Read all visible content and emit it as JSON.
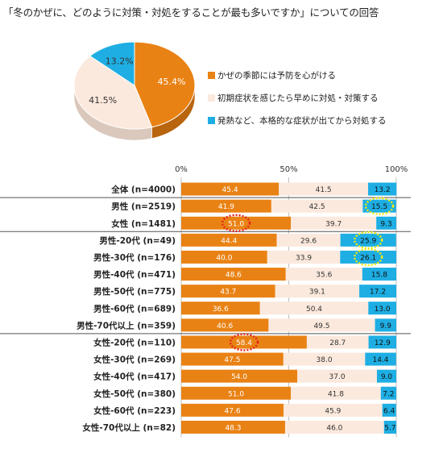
{
  "title": "「冬のかぜに、どのように対策・対処をすることが最も多いですか」についての回答",
  "colors": {
    "orange": "#e98214",
    "cream": "#fce9dd",
    "cyan": "#1eaee3",
    "highlight_red": "#e5231b",
    "highlight_yellow": "#f2ea0f"
  },
  "legend": [
    {
      "label": "かぜの季節には予防を心がける",
      "color": "#e98214"
    },
    {
      "label": "初期症状を感じたら早めに対処・対策する",
      "color": "#fce9dd"
    },
    {
      "label": "発熱など、本格的な症状が出てから対処する",
      "color": "#1eaee3"
    }
  ],
  "chart_data": [
    {
      "type": "pie",
      "labels": [
        "かぜの季節には予防を心がける",
        "初期症状を感じたら早めに対処・対策する",
        "発熱など、本格的な症状が出てから対処する"
      ],
      "values": [
        45.4,
        41.5,
        13.2
      ],
      "value_labels": [
        "45.4%",
        "41.5%",
        "13.2%"
      ]
    },
    {
      "type": "bar",
      "orientation": "horizontal",
      "stacked": true,
      "axis_ticks": [
        "0%",
        "50%",
        "100%"
      ],
      "xlim": [
        0,
        100
      ],
      "categories": [
        "全体 (n=4000)",
        "男性 (n=2519)",
        "女性 (n=1481)",
        "男性-20代 (n=49)",
        "男性-30代 (n=176)",
        "男性-40代 (n=471)",
        "男性-50代 (n=775)",
        "男性-60代 (n=689)",
        "男性-70代以上 (n=359)",
        "女性-20代 (n=110)",
        "女性-30代 (n=269)",
        "女性-40代 (n=417)",
        "女性-50代 (n=380)",
        "女性-60代 (n=223)",
        "女性-70代以上 (n=82)"
      ],
      "series": [
        {
          "name": "かぜの季節には予防を心がける",
          "values": [
            45.4,
            41.9,
            51.0,
            44.4,
            40.0,
            48.6,
            43.7,
            36.6,
            40.6,
            58.4,
            47.5,
            54.0,
            51.0,
            47.6,
            48.3
          ]
        },
        {
          "name": "初期症状を感じたら早めに対処・対策する",
          "values": [
            41.5,
            42.5,
            39.7,
            29.6,
            33.9,
            35.6,
            39.1,
            50.4,
            49.5,
            28.7,
            38.0,
            37.0,
            41.8,
            45.9,
            46.0
          ]
        },
        {
          "name": "発熱など、本格的な症状が出てから対処する",
          "values": [
            13.2,
            15.5,
            9.3,
            25.9,
            26.1,
            15.8,
            17.2,
            13.0,
            9.9,
            12.9,
            14.4,
            9.0,
            7.2,
            6.4,
            5.7
          ]
        }
      ],
      "group_separators_after": [
        0,
        2,
        8
      ],
      "highlights": [
        {
          "category": "女性 (n=1481)",
          "series": 0,
          "color": "red"
        },
        {
          "category": "女性-20代 (n=110)",
          "series": 0,
          "color": "red"
        },
        {
          "category": "男性 (n=2519)",
          "series": 2,
          "color": "yellow"
        },
        {
          "category": "男性-20代 (n=49)",
          "series": 2,
          "color": "yellow"
        },
        {
          "category": "男性-30代 (n=176)",
          "series": 2,
          "color": "yellow"
        }
      ]
    }
  ]
}
